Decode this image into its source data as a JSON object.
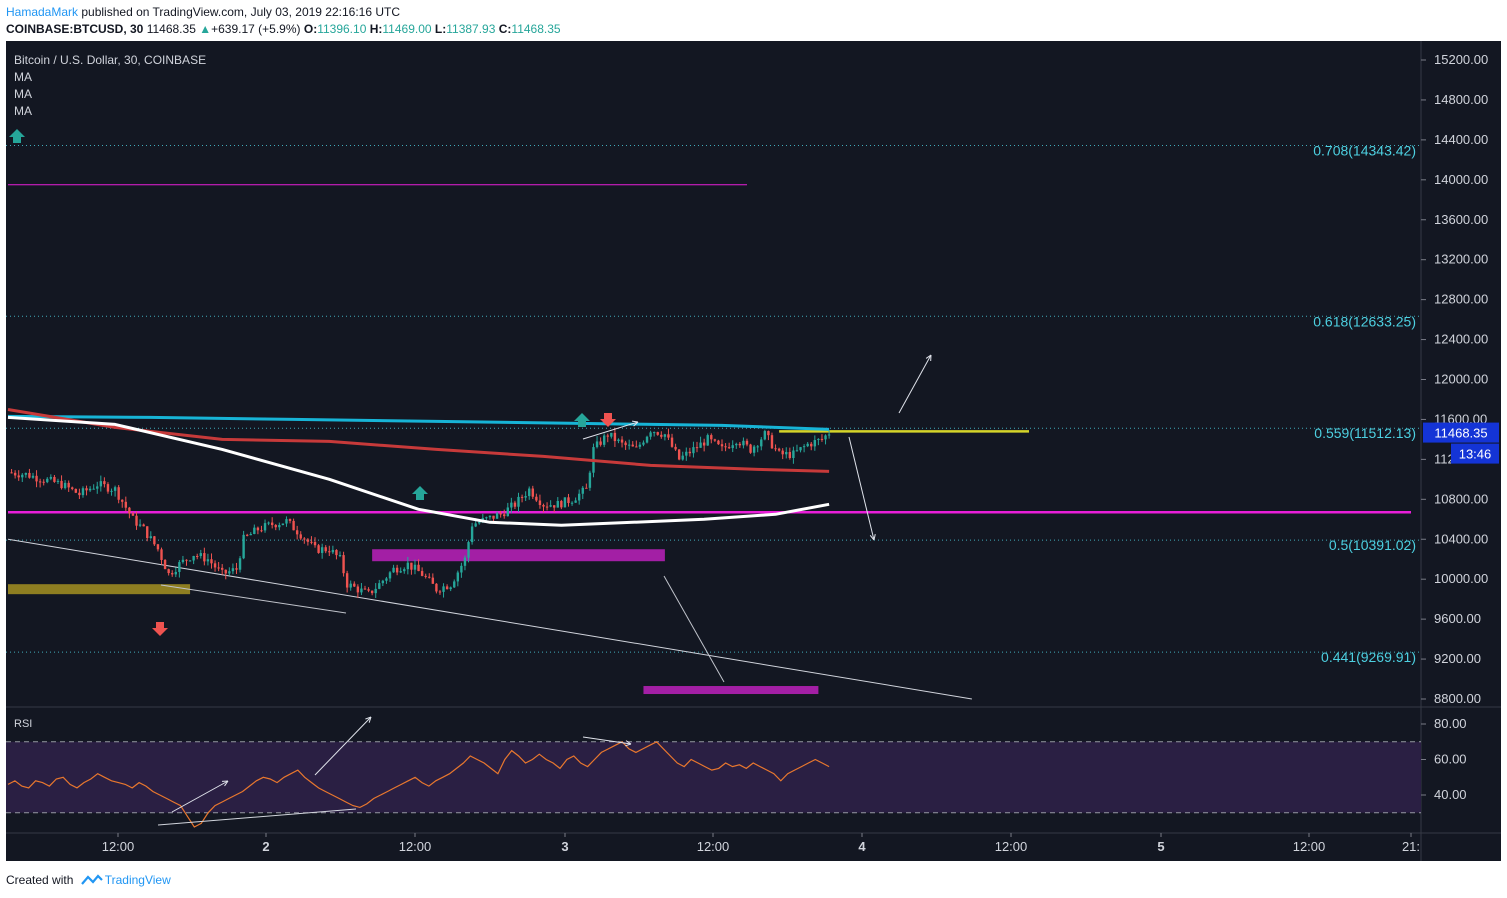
{
  "header": {
    "author": "HamadaMark",
    "published_text": " published on TradingView.com, July 03, 2019 22:16:16 UTC",
    "symbol_line": "COINBASE:BTCUSD, 30",
    "price": "11468.35",
    "change": "+639.17 (+5.9%)",
    "o_label": "O:",
    "o_value": "11396.10",
    "h_label": "H:",
    "h_value": "11469.00",
    "l_label": "L:",
    "l_value": "11387.93",
    "c_label": "C:",
    "c_value": "11468.35"
  },
  "legend": {
    "title": "Bitcoin / U.S. Dollar, 30, COINBASE",
    "ma1": "MA",
    "ma2": "MA",
    "ma3": "MA"
  },
  "rsi_label": "RSI",
  "footer": {
    "created_with": "Created with",
    "brand": "TradingView"
  },
  "colors": {
    "background": "#131722",
    "bull": "#26a69a",
    "bear": "#ef5350",
    "fib_level": "#4dd0e1",
    "ma_cyan": "#17b4d6",
    "ma_red": "#c73a3a",
    "ma_white": "#ffffff",
    "magenta": "#e81ed8",
    "olive_zone": "#9c8a21",
    "yellow_line": "#d4d42a",
    "rsi_line": "#e8772e",
    "rsi_band": "#2a1f43",
    "price_badge": "#1434d6",
    "arrow_up": "#26a69a",
    "arrow_down": "#ef5350"
  },
  "chart_data": [
    {
      "type": "candlestick",
      "title": "Bitcoin / U.S. Dollar, 30, COINBASE",
      "interval": "30",
      "ylim": [
        8800,
        15200
      ],
      "y_ticks": [
        "15200.00",
        "14800.00",
        "14400.00",
        "14000.00",
        "13600.00",
        "13200.00",
        "12800.00",
        "12400.00",
        "12000.00",
        "11600.00",
        "11200.00",
        "10800.00",
        "10400.00",
        "10000.00",
        "9600.00",
        "9200.00",
        "8800.00"
      ],
      "x_ticks": [
        "12:00",
        "2",
        "12:00",
        "3",
        "12:00",
        "4",
        "12:00",
        "5",
        "12:00",
        "21:"
      ],
      "last_price_label": "11468.35",
      "countdown_label": "13:46",
      "fib_levels": [
        {
          "label": "0.708(14343.42)",
          "value": 14343.42
        },
        {
          "label": "0.618(12633.25)",
          "value": 12633.25
        },
        {
          "label": "0.559(11512.13)",
          "value": 11512.13
        },
        {
          "label": "0.5(10391.02)",
          "value": 10391.02
        },
        {
          "label": "0.441(9269.91)",
          "value": 9269.91
        }
      ],
      "price_path": [
        [
          0,
          11070
        ],
        [
          5,
          11050
        ],
        [
          10,
          11000
        ],
        [
          15,
          10950
        ],
        [
          20,
          10850
        ],
        [
          25,
          10950
        ],
        [
          30,
          10900
        ],
        [
          35,
          10600
        ],
        [
          38,
          10500
        ],
        [
          42,
          10300
        ],
        [
          45,
          10050
        ],
        [
          48,
          10150
        ],
        [
          52,
          10250
        ],
        [
          56,
          10200
        ],
        [
          60,
          10050
        ],
        [
          64,
          10100
        ],
        [
          66,
          10400
        ],
        [
          70,
          10500
        ],
        [
          74,
          10550
        ],
        [
          78,
          10580
        ],
        [
          82,
          10450
        ],
        [
          86,
          10300
        ],
        [
          90,
          10300
        ],
        [
          93,
          10200
        ],
        [
          95,
          9950
        ],
        [
          98,
          9900
        ],
        [
          101,
          9850
        ],
        [
          104,
          9950
        ],
        [
          108,
          10100
        ],
        [
          112,
          10150
        ],
        [
          116,
          10050
        ],
        [
          120,
          9900
        ],
        [
          124,
          9950
        ],
        [
          128,
          10200
        ],
        [
          130,
          10550
        ],
        [
          134,
          10600
        ],
        [
          138,
          10650
        ],
        [
          142,
          10750
        ],
        [
          146,
          10900
        ],
        [
          150,
          10750
        ],
        [
          154,
          10750
        ],
        [
          158,
          10800
        ],
        [
          162,
          10900
        ],
        [
          164,
          11300
        ],
        [
          168,
          11450
        ],
        [
          172,
          11350
        ],
        [
          176,
          11300
        ],
        [
          180,
          11500
        ],
        [
          184,
          11450
        ],
        [
          188,
          11200
        ],
        [
          192,
          11300
        ],
        [
          196,
          11400
        ],
        [
          200,
          11300
        ],
        [
          204,
          11400
        ],
        [
          208,
          11300
        ],
        [
          212,
          11450
        ],
        [
          216,
          11250
        ],
        [
          220,
          11250
        ],
        [
          224,
          11350
        ],
        [
          228,
          11400
        ],
        [
          230,
          11468
        ]
      ],
      "moving_averages": [
        {
          "color": "#17b4d6",
          "points": [
            [
              0,
              11630
            ],
            [
              40,
              11620
            ],
            [
              80,
              11600
            ],
            [
              120,
              11580
            ],
            [
              160,
              11560
            ],
            [
              200,
              11540
            ],
            [
              230,
              11500
            ]
          ]
        },
        {
          "color": "#c73a3a",
          "points": [
            [
              0,
              11700
            ],
            [
              30,
              11520
            ],
            [
              60,
              11400
            ],
            [
              90,
              11380
            ],
            [
              120,
              11300
            ],
            [
              150,
              11230
            ],
            [
              180,
              11140
            ],
            [
              210,
              11100
            ],
            [
              230,
              11080
            ]
          ]
        },
        {
          "color": "#ffffff",
          "points": [
            [
              0,
              11620
            ],
            [
              30,
              11550
            ],
            [
              60,
              11300
            ],
            [
              90,
              11000
            ],
            [
              115,
              10700
            ],
            [
              135,
              10570
            ],
            [
              155,
              10540
            ],
            [
              175,
              10570
            ],
            [
              195,
              10600
            ],
            [
              215,
              10650
            ],
            [
              230,
              10750
            ]
          ]
        }
      ],
      "horizontal_lines": [
        {
          "color": "#e81ed8",
          "value": 13950,
          "x_from": 0,
          "x_to": 207
        },
        {
          "color": "#e81ed8",
          "value": 10670,
          "x_from": 0,
          "x_to": 393
        },
        {
          "color": "#d4d42a",
          "value": 11480,
          "x_from": 216,
          "x_to": 286
        }
      ],
      "zones": [
        {
          "color": "#9c8a21",
          "from": 9850,
          "to": 9950,
          "x_from": 0,
          "x_to": 51
        },
        {
          "color": "#b420b4",
          "from": 10180,
          "to": 10300,
          "x_from": 102,
          "x_to": 184
        },
        {
          "color": "#b420b4",
          "from": 8850,
          "to": 8930,
          "x_from": 178,
          "x_to": 227
        }
      ],
      "trendlines": [
        {
          "from": [
            0,
            10400
          ],
          "to": [
            270,
            8800
          ]
        }
      ]
    },
    {
      "type": "line",
      "title": "RSI",
      "ylim": [
        20,
        90
      ],
      "y_ticks": [
        "80.00",
        "60.00",
        "40.00"
      ],
      "levels": [
        70,
        30
      ],
      "values": [
        46,
        48,
        45,
        44,
        48,
        47,
        45,
        49,
        50,
        46,
        44,
        47,
        49,
        52,
        50,
        48,
        47,
        46,
        44,
        47,
        45,
        42,
        40,
        38,
        36,
        34,
        28,
        22,
        24,
        30,
        34,
        36,
        38,
        40,
        42,
        45,
        48,
        50,
        49,
        47,
        50,
        52,
        54,
        50,
        47,
        44,
        42,
        40,
        38,
        36,
        34,
        33,
        35,
        38,
        40,
        42,
        44,
        46,
        48,
        50,
        47,
        45,
        48,
        50,
        52,
        55,
        58,
        62,
        60,
        58,
        55,
        52,
        60,
        65,
        62,
        58,
        60,
        63,
        60,
        58,
        55,
        60,
        62,
        58,
        56,
        60,
        64,
        66,
        68,
        70,
        66,
        64,
        66,
        68,
        70,
        66,
        62,
        58,
        56,
        60,
        58,
        56,
        54,
        55,
        58,
        56,
        57,
        55,
        58,
        56,
        54,
        52,
        48,
        52,
        54,
        56,
        58,
        60,
        58,
        56
      ]
    }
  ]
}
